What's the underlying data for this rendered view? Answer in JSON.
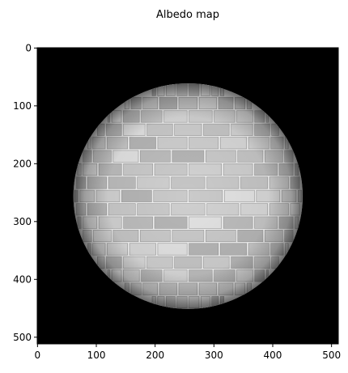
{
  "chart_data": {
    "type": "image",
    "title": "Albedo map",
    "xlabel": "",
    "ylabel": "",
    "x_ticks": [
      0,
      100,
      200,
      300,
      400,
      500
    ],
    "y_ticks": [
      0,
      100,
      200,
      300,
      400,
      500
    ],
    "x_tick_labels": [
      "0",
      "100",
      "200",
      "300",
      "400",
      "500"
    ],
    "y_tick_labels": [
      "0",
      "100",
      "200",
      "300",
      "400",
      "500"
    ],
    "xlim": [
      -0.5,
      511.5
    ],
    "ylim": [
      511.5,
      -0.5
    ],
    "image_size": [
      512,
      512
    ],
    "sphere": {
      "center_x": 256,
      "center_y": 256,
      "radius": 195
    },
    "grid": false,
    "colors": {
      "background": "#000000",
      "brick_light": "#e6e6e6",
      "brick_mid": "#c8c8c8",
      "mortar": "#f2f2f2",
      "edge_shadow": "#5a5a5a"
    }
  }
}
